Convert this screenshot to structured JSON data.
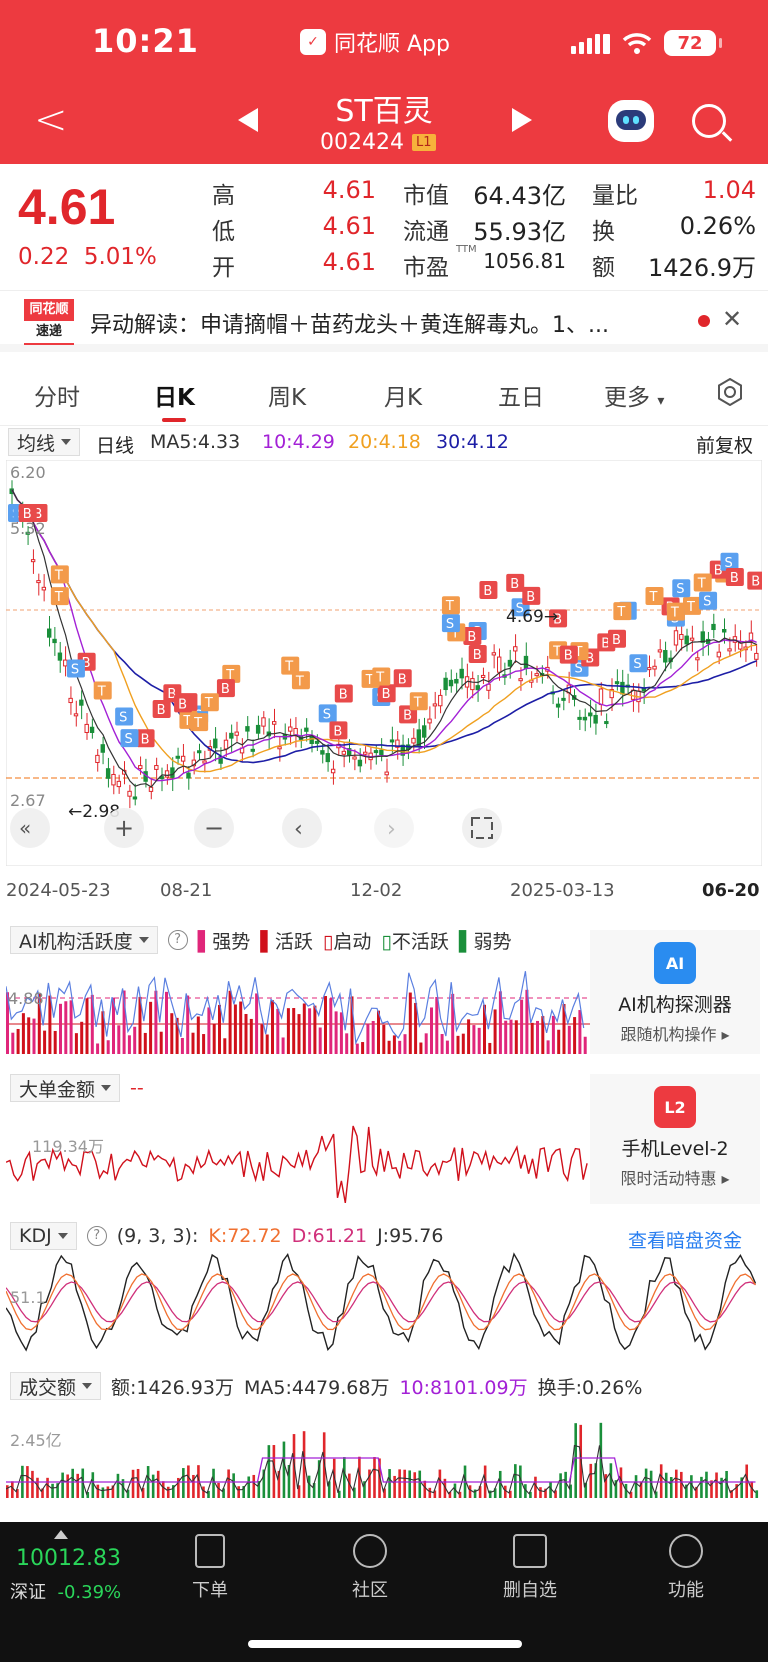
{
  "status_bar": {
    "time": "10:21",
    "app": "同花顺 App",
    "battery": "72"
  },
  "header": {
    "title": "ST百灵",
    "code": "002424",
    "level": "L1"
  },
  "quote": {
    "price": "4.61",
    "change": "0.22",
    "change_pct": "5.01%",
    "rows": [
      {
        "l1": "高",
        "v1": "4.61",
        "l2": "市值",
        "v2": "64.43亿",
        "l3": "量比",
        "v3": "1.04"
      },
      {
        "l1": "低",
        "v1": "4.61",
        "l2": "流通",
        "v2": "55.93亿",
        "l3": "换",
        "v3": "0.26%"
      },
      {
        "l1": "开",
        "v1": "4.61",
        "l2": "市盈",
        "v2": "1056.81",
        "l3": "额",
        "v3": "1426.9万"
      }
    ],
    "ttm": "TTM"
  },
  "news": {
    "logo_top": "同花顺",
    "logo_bottom": "速递",
    "text": "异动解读：申请摘帽＋苗药龙头＋黄连解毒丸。1、..."
  },
  "tabs": [
    "分时",
    "日K",
    "周K",
    "月K",
    "五日",
    "更多"
  ],
  "kline_header": {
    "mode": "均线",
    "period": "日线",
    "ma5": "MA5:4.33",
    "ma10": "10:4.29",
    "ma20": "20:4.18",
    "ma30": "30:4.12",
    "adjust": "前复权"
  },
  "kline_axis": {
    "y_top": "6.20",
    "y_mid": "5.32",
    "y_low": "2.67",
    "low_mark": "←2.98",
    "high_mark": "4.69→",
    "dates": [
      "2024-05-23",
      "08-21",
      "12-02",
      "2025-03-13",
      "06-20"
    ]
  },
  "ai_panel": {
    "title": "AI机构活跃度",
    "legend": [
      "强势",
      "活跃",
      "启动",
      "不活跃",
      "弱势"
    ],
    "level": "4.88",
    "card_title": "AI机构探测器",
    "card_sub": "跟随机构操作 ▸"
  },
  "big_order": {
    "title": "大单金额",
    "value": "--",
    "axis": "119.34万",
    "card_title": "手机Level-2",
    "card_sub": "限时活动特惠 ▸"
  },
  "kdj": {
    "title": "KDJ",
    "params": "(9, 3, 3):",
    "k": "K:72.72",
    "d": "D:61.21",
    "j": "J:95.76",
    "link": "查看暗盘资金",
    "axis": "51.1"
  },
  "turnover": {
    "title": "成交额",
    "amount": "额:1426.93万",
    "ma5": "MA5:4479.68万",
    "ma10": "10:8101.09万",
    "rate": "换手:0.26%",
    "axis": "2.45亿"
  },
  "bottom_nav": {
    "index_value": "10012.83",
    "index_name": "深证",
    "index_change": "-0.39%",
    "items": [
      "下单",
      "社区",
      "删自选",
      "功能"
    ]
  },
  "colors": {
    "accent": "#ed3a40",
    "up": "#e0262b",
    "down": "#1a8f3a",
    "ma5": "#222222",
    "ma10": "#a321d6",
    "ma20": "#f0a020",
    "ma30": "#1d1ea6"
  }
}
